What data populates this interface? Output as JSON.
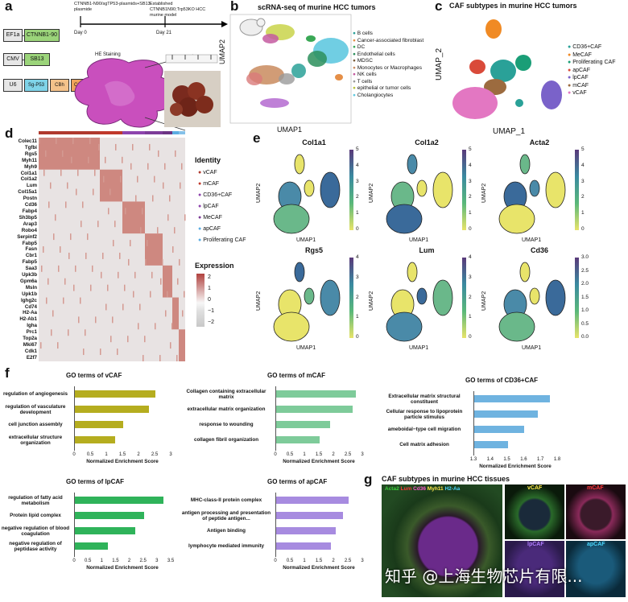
{
  "panels": {
    "a": {
      "label": "a",
      "text_plasmid": "CTNNB1-N90/sgTP53-plasmids+SB13 plasmide",
      "text_day0": "Day 0",
      "text_model": "Established CTNNB1N90;Trp53KO HCC murine model",
      "text_day21": "Day 21",
      "text_he": "HE Staining",
      "constructs": [
        {
          "promoter": "EF1a",
          "gene": "CTNNB1-90",
          "color": "#9bd47a"
        },
        {
          "promoter": "CMV",
          "gene": "SB13",
          "color": "#9bd47a"
        },
        {
          "promoter": "U6",
          "gene": "Sg-P53",
          "gene2": "CBh",
          "gene3": "Cas9"
        }
      ]
    },
    "b": {
      "label": "b",
      "title": "scRNA-seq of murine HCC tumors",
      "xlabel": "UMAP1",
      "ylabel": "UMAP2",
      "legend": [
        {
          "name": "B cells",
          "color": "#2aa198"
        },
        {
          "name": "Cancer-associated fibroblast",
          "color": "#e58f47"
        },
        {
          "name": "DC",
          "color": "#3aa856"
        },
        {
          "name": "Endothelial cells",
          "color": "#2c8f5c"
        },
        {
          "name": "MDSC",
          "color": "#7a5c3a"
        },
        {
          "name": "Monocytes or Macrophages",
          "color": "#c98b5e"
        },
        {
          "name": "NK cells",
          "color": "#c45aa0"
        },
        {
          "name": "T cells",
          "color": "#9a9a9a"
        },
        {
          "name": "epithelial or tumor cells",
          "color": "#b8c33a"
        },
        {
          "name": "Cholangiocytes",
          "color": "#60c9e0"
        }
      ]
    },
    "c": {
      "label": "c",
      "title": "CAF subtypes in murine HCC tumors",
      "xlabel": "UMAP_1",
      "ylabel": "UMAP_2",
      "legend": [
        {
          "name": "CD36+CAF",
          "color": "#2aa198"
        },
        {
          "name": "MeCAF",
          "color": "#f08a24"
        },
        {
          "name": "Proliferating CAF",
          "color": "#1a9e77"
        },
        {
          "name": "apCAF",
          "color": "#d94a3a"
        },
        {
          "name": "lpCAF",
          "color": "#7a62c9"
        },
        {
          "name": "mCAF",
          "color": "#9c6b3f"
        },
        {
          "name": "vCAF",
          "color": "#e377c2"
        }
      ]
    },
    "d": {
      "label": "d",
      "genes": [
        "Colec11",
        "Tgfbi",
        "Rgs5",
        "Myh11",
        "Myh9",
        "Col1a1",
        "Col1a2",
        "Lum",
        "Col15a1",
        "Postn",
        "Cd36",
        "Fabp4",
        "Sh3bp5",
        "Arap3",
        "Robo4",
        "Serpinf2",
        "Fabp5",
        "Fasn",
        "Cbr1",
        "Fabp5",
        "Saa3",
        "Upk3b",
        "Gpm6a",
        "Msln",
        "Upk1b",
        "Ighg2c",
        "Cd74",
        "H2-Aa",
        "H2-Ab1",
        "Igha",
        "Prc1",
        "Top2a",
        "Mki67",
        "Cdk1",
        "E2f7"
      ],
      "identity_title": "Identity",
      "identity": [
        {
          "name": "vCAF",
          "color": "#b03a2e"
        },
        {
          "name": "mCAF",
          "color": "#c0392b"
        },
        {
          "name": "CD36+CAF",
          "color": "#8e44ad"
        },
        {
          "name": "lpCAF",
          "color": "#8e44ad"
        },
        {
          "name": "MeCAF",
          "color": "#7d3c98"
        },
        {
          "name": "apCAF",
          "color": "#5dade2"
        },
        {
          "name": "Proliferating CAF",
          "color": "#5dade2"
        }
      ],
      "expression_title": "Expression",
      "expression_ticks": [
        "2",
        "1",
        "0",
        "−1",
        "−2"
      ]
    },
    "e": {
      "label": "e",
      "xlabel": "UMAP1",
      "ylabel": "UMAP2",
      "plots": [
        {
          "gene": "Col1a1",
          "ticks": [
            "5",
            "4",
            "3",
            "2",
            "1",
            "0"
          ]
        },
        {
          "gene": "Col1a2",
          "ticks": [
            "5",
            "4",
            "3",
            "2",
            "1",
            "0"
          ]
        },
        {
          "gene": "Acta2",
          "ticks": [
            "5",
            "4",
            "3",
            "2",
            "1",
            "0"
          ]
        },
        {
          "gene": "Rgs5",
          "ticks": [
            "4",
            "3",
            "2",
            "1",
            "0"
          ]
        },
        {
          "gene": "Lum",
          "ticks": [
            "4",
            "3",
            "2",
            "1",
            "0"
          ]
        },
        {
          "gene": "Cd36",
          "ticks": [
            "3.0",
            "2.5",
            "2.0",
            "1.5",
            "1.0",
            "0.5",
            "0.0"
          ]
        }
      ]
    },
    "f": {
      "label": "f",
      "xlabel": "Normalized Enrichment Score",
      "charts": [
        {
          "title": "GO terms of vCAF",
          "color": "#b5ad1f",
          "xticks": [
            "0",
            "0.5",
            "1",
            "1.5",
            "2",
            "2.5",
            "3"
          ],
          "xmax": 3,
          "terms": [
            "regulation of angiogenesis",
            "regulation of vasculature development",
            "cell junction assembly",
            "extracellular structure organization"
          ],
          "values": [
            2.5,
            2.3,
            1.5,
            1.25
          ]
        },
        {
          "title": "GO terms of mCAF",
          "color": "#7ecb9a",
          "xticks": [
            "0",
            "0.5",
            "1",
            "1.5",
            "2",
            "2.5",
            "3"
          ],
          "xmax": 3,
          "terms": [
            "Collagen containing extracellular matrix",
            "extracellular matrix organization",
            "response to wounding",
            "collagen fibril organization"
          ],
          "values": [
            2.75,
            2.65,
            1.85,
            1.5
          ]
        },
        {
          "title": "GO terms of CD36+CAF",
          "color": "#6fb3e0",
          "xticks": [
            "1.3",
            "1.4",
            "1.5",
            "1.6",
            "1.7",
            "1.8"
          ],
          "xmin": 1.3,
          "xmax": 1.8,
          "terms": [
            "Extracellular matrix structural constituent",
            "Cellular response to lipoprotein particle stimulus",
            "ameboidal−type cell migration",
            "Cell matrix adhesion"
          ],
          "values": [
            1.75,
            1.68,
            1.6,
            1.5
          ]
        },
        {
          "title": "GO terms of lpCAF",
          "color": "#2fb35a",
          "xticks": [
            "0",
            "0.5",
            "1",
            "1.5",
            "2",
            "2.5",
            "3",
            "3.5"
          ],
          "xmax": 3.5,
          "terms": [
            "regulation of fatty acid metabolism",
            "Protein lipid complex",
            "negative regulation of blood coagulation",
            "negative regulation of peptidase activity"
          ],
          "values": [
            3.2,
            2.5,
            2.2,
            1.2
          ]
        },
        {
          "title": "GO terms of apCAF",
          "color": "#a78be0",
          "xticks": [
            "0",
            "0.5",
            "1",
            "1.5",
            "2",
            "2.5",
            "3"
          ],
          "xmax": 3,
          "terms": [
            "MHC-class-II protein complex",
            "antigen processing and presentation of peptide antigen...",
            "Antigen binding",
            "lymphocyte mediated immunity"
          ],
          "values": [
            2.5,
            2.3,
            2.05,
            1.9
          ]
        }
      ]
    },
    "g": {
      "label": "g",
      "title": "CAF subtypes in murine HCC tissues",
      "stain_labels": [
        {
          "text": "Acta2",
          "color": "#3ad13a"
        },
        {
          "text": "Lum",
          "color": "#ff3a3a"
        },
        {
          "text": "Cd36",
          "color": "#ff5ad0"
        },
        {
          "text": "Myh11",
          "color": "#ffe94a"
        },
        {
          "text": "H2-Aa",
          "color": "#4ad8ff"
        }
      ],
      "tiles": [
        {
          "label": "vCAF",
          "color": "#ffe94a"
        },
        {
          "label": "mCAF",
          "color": "#ff3a3a"
        },
        {
          "label": "lpCAF",
          "color": "#b07cff"
        },
        {
          "label": "apCAF",
          "color": "#4ad8ff"
        }
      ]
    }
  },
  "watermark": "知乎 @上海生物芯片有限..."
}
